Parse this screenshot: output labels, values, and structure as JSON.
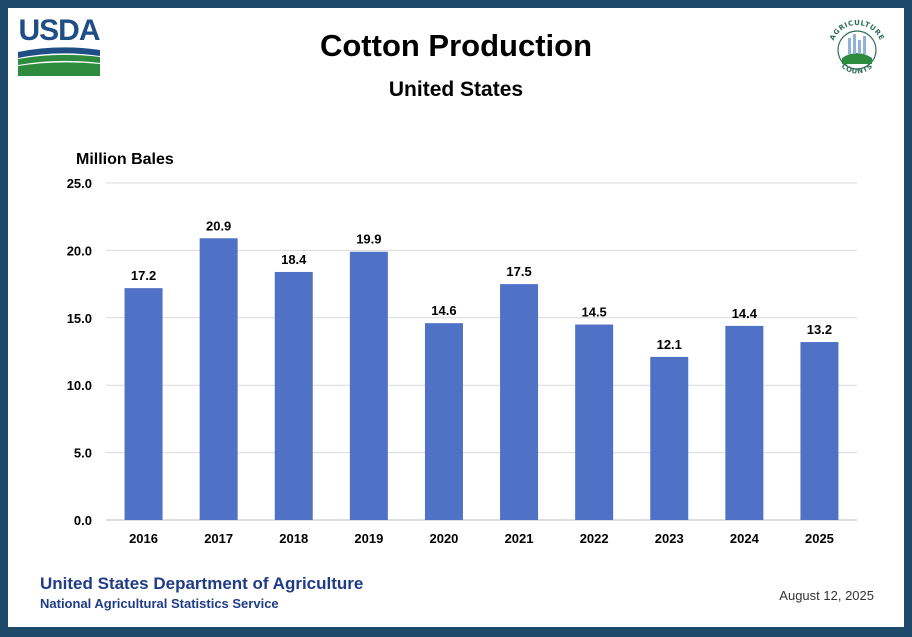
{
  "header": {
    "usda_logo_text": "USDA",
    "title": "Cotton Production",
    "subtitle": "United States",
    "ag_logo_top_text": "AGRICULTURE",
    "ag_logo_bottom_text": "COUNTS"
  },
  "footer": {
    "agency": "United States Department of Agriculture",
    "service": "National Agricultural Statistics Service",
    "date": "August 12, 2025"
  },
  "colors": {
    "bar": "#4f72c6",
    "gridline": "#d9d9d9",
    "frame": "#1d4a6b",
    "usda_blue": "#1f4e86",
    "usda_green": "#2e8b3e"
  },
  "chart_data": {
    "type": "bar",
    "title": "Cotton Production",
    "subtitle": "United States",
    "ylabel": "Million Bales",
    "xlabel": "",
    "categories": [
      "2016",
      "2017",
      "2018",
      "2019",
      "2020",
      "2021",
      "2022",
      "2023",
      "2024",
      "2025"
    ],
    "values": [
      17.2,
      20.9,
      18.4,
      19.9,
      14.6,
      17.5,
      14.5,
      12.1,
      14.4,
      13.2
    ],
    "data_labels": [
      "17.2",
      "20.9",
      "18.4",
      "19.9",
      "14.6",
      "17.5",
      "14.5",
      "12.1",
      "14.4",
      "13.2"
    ],
    "yticks": [
      "0.0",
      "5.0",
      "10.0",
      "15.0",
      "20.0",
      "25.0"
    ],
    "ylim": [
      0,
      25
    ],
    "grid": true,
    "legend": "none"
  }
}
